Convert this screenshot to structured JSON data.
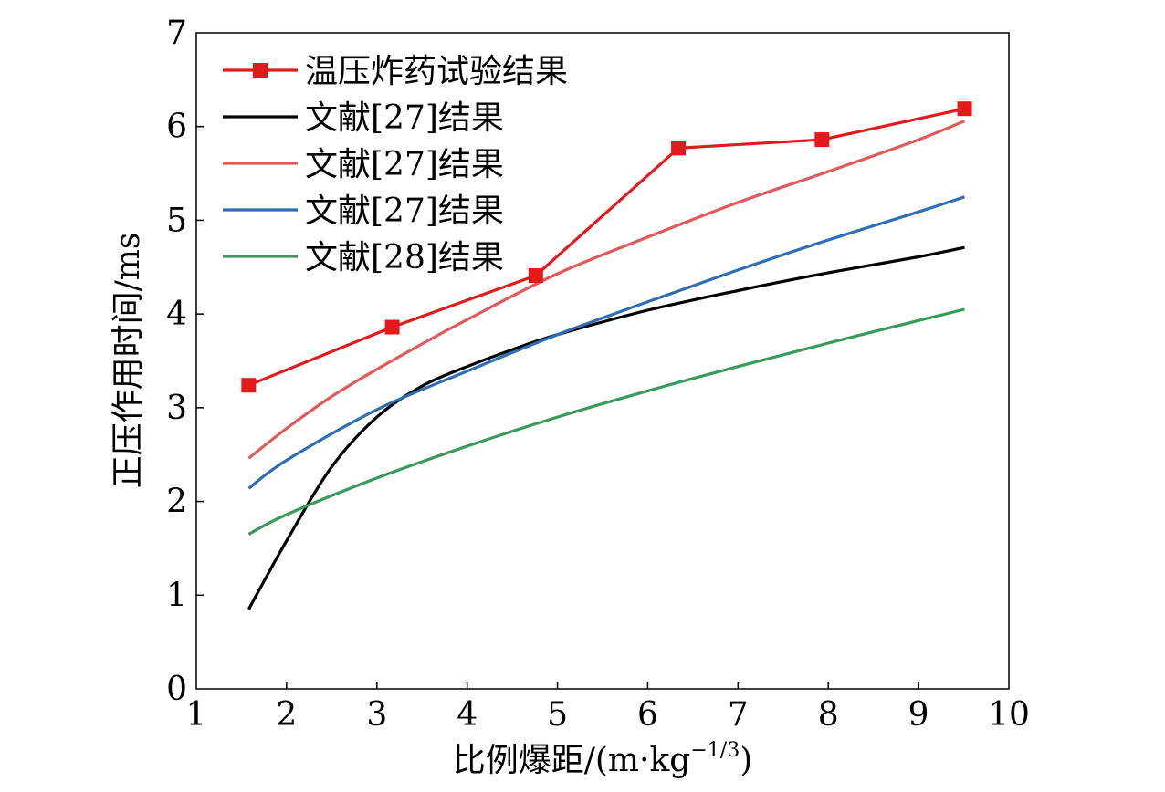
{
  "chart_data": {
    "type": "line",
    "xlabel": "比例爆距/(m·kg",
    "xlabel_sup": "−1/3",
    "xlabel_end": ")",
    "ylabel": "正压作用时间/ms",
    "xlim": [
      1,
      10
    ],
    "ylim": [
      0,
      7
    ],
    "xticks": [
      1,
      2,
      3,
      4,
      5,
      6,
      7,
      8,
      9,
      10
    ],
    "yticks": [
      0,
      1,
      2,
      3,
      4,
      5,
      6,
      7
    ],
    "grid": false,
    "legend_position": "top-left",
    "series": [
      {
        "name": "温压炸药试验结果",
        "color": "#e31a1c",
        "marker": "square",
        "smooth": false,
        "x": [
          1.58,
          3.17,
          4.76,
          6.34,
          7.93,
          9.51
        ],
        "y": [
          3.24,
          3.86,
          4.41,
          5.77,
          5.86,
          6.19
        ]
      },
      {
        "name": "文献[27]结果",
        "color": "#000000",
        "marker": "none",
        "smooth": true,
        "x": [
          1.58,
          2.0,
          2.5,
          3.0,
          3.5,
          4.0,
          4.5,
          5.0,
          6.0,
          7.0,
          8.0,
          9.0,
          9.51
        ],
        "y": [
          0.85,
          1.58,
          2.37,
          2.9,
          3.23,
          3.44,
          3.62,
          3.78,
          4.04,
          4.25,
          4.44,
          4.61,
          4.71
        ]
      },
      {
        "name": "文献[27]结果",
        "color": "#e05a5a",
        "marker": "none",
        "smooth": true,
        "x": [
          1.58,
          2.0,
          2.5,
          3.0,
          3.5,
          4.0,
          5.0,
          6.0,
          7.0,
          8.0,
          9.0,
          9.51
        ],
        "y": [
          2.46,
          2.78,
          3.12,
          3.41,
          3.68,
          3.94,
          4.43,
          4.82,
          5.19,
          5.52,
          5.86,
          6.06
        ]
      },
      {
        "name": "文献[27]结果",
        "color": "#2f6db5",
        "marker": "none",
        "smooth": true,
        "x": [
          1.58,
          2.0,
          3.0,
          4.0,
          5.0,
          6.0,
          7.0,
          8.0,
          9.0,
          9.51
        ],
        "y": [
          2.14,
          2.44,
          2.98,
          3.39,
          3.78,
          4.13,
          4.47,
          4.79,
          5.09,
          5.25
        ]
      },
      {
        "name": "文献[28]结果",
        "color": "#3a9a5b",
        "marker": "none",
        "smooth": true,
        "x": [
          1.58,
          2.0,
          3.0,
          4.0,
          5.0,
          6.0,
          7.0,
          8.0,
          9.0,
          9.51
        ],
        "y": [
          1.65,
          1.86,
          2.25,
          2.59,
          2.9,
          3.18,
          3.44,
          3.69,
          3.93,
          4.05
        ]
      }
    ]
  }
}
